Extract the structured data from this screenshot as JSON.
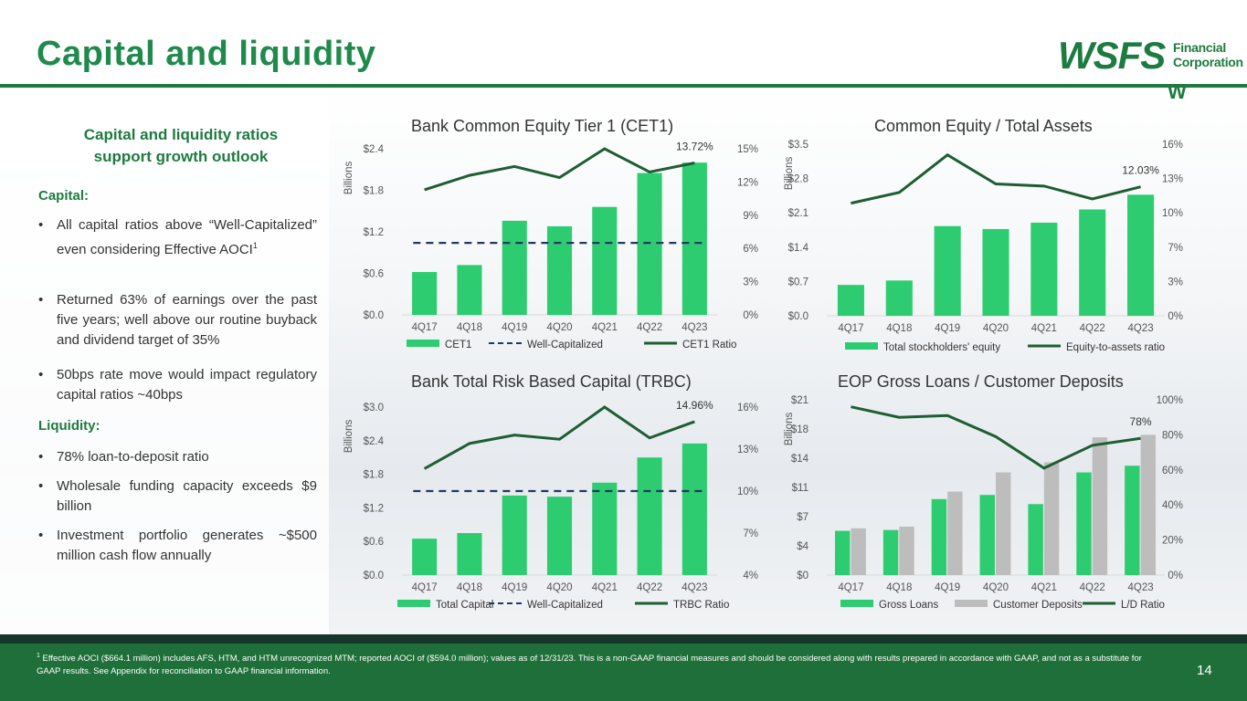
{
  "page": {
    "title": "Capital and liquidity",
    "logo": {
      "name": "WSFS",
      "line1": "Financial",
      "line2": "Corporation",
      "mark": "W"
    },
    "page_number": "14",
    "footnote_marker": "1",
    "footnote": " Effective AOCI ($664.1 million) includes AFS, HTM, and HTM unrecognized MTM; reported AOCI of ($594.0 million); values as of 12/31/23. This is a non-GAAP financial measures and should be considered along with results prepared in accordance with GAAP, and not as a substitute for GAAP results.  See Appendix for reconciliation to GAAP financial information."
  },
  "left": {
    "subtitle": "Capital and liquidity ratios support growth outlook",
    "capital_heading": "Capital:",
    "capital_bullets": [
      "All capital ratios above “Well-Capitalized” even considering Effective AOCI",
      "Returned 63% of earnings over the past five years; well above our routine buyback and dividend target of 35%",
      "50bps rate move would impact regulatory capital ratios ~40bps"
    ],
    "sup": "1",
    "liquidity_heading": "Liquidity:",
    "liquidity_bullets": [
      "78% loan-to-deposit ratio",
      "Wholesale funding capacity exceeds $9 billion",
      "Investment portfolio generates ~$500 million cash flow annually"
    ],
    "bullet_char": "•"
  },
  "colors": {
    "bar": "#2ecc71",
    "bar2": "#bdbdbd",
    "line": "#1e5e34",
    "dash": "#1f3a5f",
    "grid": "#d9d9d9"
  },
  "chart_data": [
    {
      "id": "cet1",
      "type": "bar",
      "title": "Bank Common Equity Tier 1 (CET1)",
      "ylabel": "Billions",
      "categories": [
        "4Q17",
        "4Q18",
        "4Q19",
        "4Q20",
        "4Q21",
        "4Q22",
        "4Q23"
      ],
      "left_ticks": [
        "$0.0",
        "$0.6",
        "$1.2",
        "$1.8",
        "$2.4"
      ],
      "left_range": [
        0,
        2.4
      ],
      "right_ticks": [
        "0%",
        "3%",
        "6%",
        "9%",
        "12%",
        "15%"
      ],
      "right_range": [
        0,
        15
      ],
      "series": [
        {
          "name": "CET1",
          "kind": "bar",
          "axis": "left",
          "values": [
            0.62,
            0.72,
            1.36,
            1.28,
            1.56,
            2.05,
            2.2
          ]
        },
        {
          "name": "Well-Capitalized",
          "kind": "dash",
          "axis": "right",
          "values": [
            6.5,
            6.5,
            6.5,
            6.5,
            6.5,
            6.5,
            6.5
          ]
        },
        {
          "name": "CET1 Ratio",
          "kind": "line",
          "axis": "right",
          "values": [
            11.3,
            12.6,
            13.4,
            12.4,
            15.0,
            12.9,
            13.72
          ]
        }
      ],
      "end_label": "13.72%"
    },
    {
      "id": "equity",
      "type": "bar",
      "title": "Common Equity / Total Assets",
      "ylabel": "Billions",
      "categories": [
        "4Q17",
        "4Q18",
        "4Q19",
        "4Q20",
        "4Q21",
        "4Q22",
        "4Q23"
      ],
      "left_ticks": [
        "$0.0",
        "$0.7",
        "$1.4",
        "$2.1",
        "$2.8",
        "$3.5"
      ],
      "left_range": [
        0,
        3.5
      ],
      "right_ticks": [
        "0%",
        "3%",
        "7%",
        "10%",
        "13%",
        "16%"
      ],
      "right_range": [
        0,
        16
      ],
      "series": [
        {
          "name": "Total stockholders' equity",
          "kind": "bar",
          "axis": "left",
          "values": [
            0.63,
            0.72,
            1.83,
            1.77,
            1.9,
            2.17,
            2.47
          ]
        },
        {
          "name": "Equity-to-assets ratio",
          "kind": "line",
          "axis": "right",
          "values": [
            10.5,
            11.5,
            15.0,
            12.3,
            12.1,
            10.9,
            12.03
          ]
        }
      ],
      "end_label": "12.03%"
    },
    {
      "id": "trbc",
      "type": "bar",
      "title": "Bank Total Risk Based Capital (TRBC)",
      "ylabel": "Billions",
      "categories": [
        "4Q17",
        "4Q18",
        "4Q19",
        "4Q20",
        "4Q21",
        "4Q22",
        "4Q23"
      ],
      "left_ticks": [
        "$0.0",
        "$0.6",
        "$1.2",
        "$1.8",
        "$2.4",
        "$3.0"
      ],
      "left_range": [
        0,
        3.0
      ],
      "right_ticks": [
        "4%",
        "7%",
        "10%",
        "13%",
        "16%"
      ],
      "right_range": [
        4,
        16
      ],
      "series": [
        {
          "name": "Total Capital",
          "kind": "bar",
          "axis": "left",
          "values": [
            0.65,
            0.75,
            1.42,
            1.4,
            1.65,
            2.1,
            2.35
          ]
        },
        {
          "name": "Well-Capitalized",
          "kind": "dash",
          "axis": "right",
          "values": [
            10.0,
            10.0,
            10.0,
            10.0,
            10.0,
            10.0,
            10.0
          ]
        },
        {
          "name": "TRBC Ratio",
          "kind": "line",
          "axis": "right",
          "values": [
            11.6,
            13.4,
            14.0,
            13.7,
            16.0,
            13.8,
            14.96
          ]
        }
      ],
      "end_label": "14.96%"
    },
    {
      "id": "loans",
      "type": "bar",
      "title": "EOP Gross Loans / Customer Deposits",
      "ylabel": "Billions",
      "categories": [
        "4Q17",
        "4Q18",
        "4Q19",
        "4Q20",
        "4Q21",
        "4Q22",
        "4Q23"
      ],
      "left_ticks": [
        "$0",
        "$4",
        "$7",
        "$11",
        "$14",
        "$18",
        "$21"
      ],
      "left_range": [
        0,
        21
      ],
      "right_ticks": [
        "0%",
        "20%",
        "40%",
        "60%",
        "80%",
        "100%"
      ],
      "right_range": [
        0,
        100
      ],
      "series": [
        {
          "name": "Gross Loans",
          "kind": "bar",
          "axis": "left",
          "values": [
            5.3,
            5.4,
            9.1,
            9.6,
            8.5,
            12.3,
            13.1
          ]
        },
        {
          "name": "Customer Deposits",
          "kind": "bar2",
          "axis": "left",
          "values": [
            5.6,
            5.8,
            10.0,
            12.3,
            13.5,
            16.5,
            16.8
          ]
        },
        {
          "name": "L/D Ratio",
          "kind": "line",
          "axis": "right",
          "values": [
            96,
            90,
            91,
            79,
            61,
            74,
            78
          ]
        }
      ],
      "end_label": "78%"
    }
  ]
}
